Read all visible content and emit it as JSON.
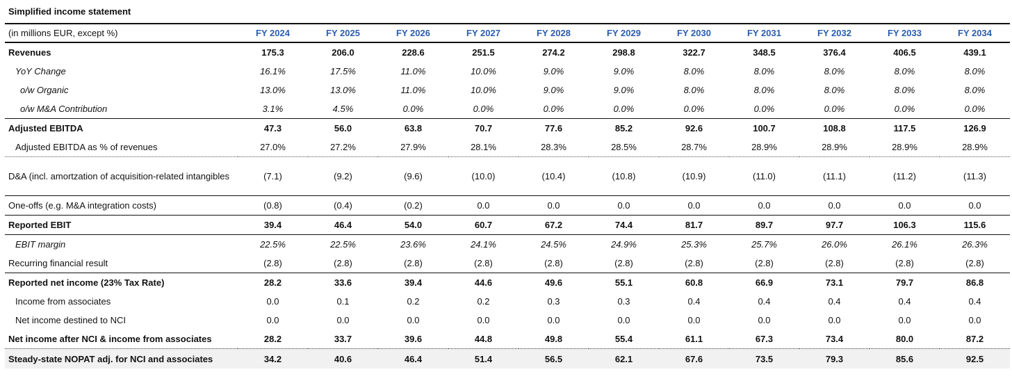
{
  "title": "Simplified income statement",
  "header": {
    "label": "(in millions EUR, except %)",
    "years": [
      "FY 2024",
      "FY 2025",
      "FY 2026",
      "FY 2027",
      "FY 2028",
      "FY 2029",
      "FY 2030",
      "FY 2031",
      "FY 2032",
      "FY 2033",
      "FY 2034"
    ]
  },
  "accent_color": "#2a5db0",
  "rows": [
    {
      "label": "Revenues",
      "style": "bold",
      "values": [
        "175.3",
        "206.0",
        "228.6",
        "251.5",
        "274.2",
        "298.8",
        "322.7",
        "348.5",
        "376.4",
        "406.5",
        "439.1"
      ]
    },
    {
      "label": "YoY Change",
      "style": "italic",
      "values": [
        "16.1%",
        "17.5%",
        "11.0%",
        "10.0%",
        "9.0%",
        "9.0%",
        "8.0%",
        "8.0%",
        "8.0%",
        "8.0%",
        "8.0%"
      ]
    },
    {
      "label": "o/w Organic",
      "style": "italic",
      "values": [
        "13.0%",
        "13.0%",
        "11.0%",
        "10.0%",
        "9.0%",
        "9.0%",
        "8.0%",
        "8.0%",
        "8.0%",
        "8.0%",
        "8.0%"
      ]
    },
    {
      "label": "o/w M&A Contribution",
      "style": "italic",
      "values": [
        "3.1%",
        "4.5%",
        "0.0%",
        "0.0%",
        "0.0%",
        "0.0%",
        "0.0%",
        "0.0%",
        "0.0%",
        "0.0%",
        "0.0%"
      ]
    },
    {
      "label": "Adjusted EBITDA",
      "style": "bold",
      "values": [
        "47.3",
        "56.0",
        "63.8",
        "70.7",
        "77.6",
        "85.2",
        "92.6",
        "100.7",
        "108.8",
        "117.5",
        "126.9"
      ]
    },
    {
      "label": "Adjusted EBITDA as % of revenues",
      "style": "normal",
      "values": [
        "27.0%",
        "27.2%",
        "27.9%",
        "28.1%",
        "28.3%",
        "28.5%",
        "28.7%",
        "28.9%",
        "28.9%",
        "28.9%",
        "28.9%"
      ]
    },
    {
      "label": "D&A (incl. amortzation of acquisition-related intangibles",
      "style": "normal",
      "values": [
        "(7.1)",
        "(9.2)",
        "(9.6)",
        "(10.0)",
        "(10.4)",
        "(10.8)",
        "(10.9)",
        "(11.0)",
        "(11.1)",
        "(11.2)",
        "(11.3)"
      ]
    },
    {
      "label": "One-offs (e.g. M&A integration costs)",
      "style": "normal",
      "values": [
        "(0.8)",
        "(0.4)",
        "(0.2)",
        "0.0",
        "0.0",
        "0.0",
        "0.0",
        "0.0",
        "0.0",
        "0.0",
        "0.0"
      ]
    },
    {
      "label": "Reported EBIT",
      "style": "bold",
      "values": [
        "39.4",
        "46.4",
        "54.0",
        "60.7",
        "67.2",
        "74.4",
        "81.7",
        "89.7",
        "97.7",
        "106.3",
        "115.6"
      ]
    },
    {
      "label": "EBIT margin",
      "style": "italic",
      "values": [
        "22.5%",
        "22.5%",
        "23.6%",
        "24.1%",
        "24.5%",
        "24.9%",
        "25.3%",
        "25.7%",
        "26.0%",
        "26.1%",
        "26.3%"
      ]
    },
    {
      "label": "Recurring financial result",
      "style": "normal",
      "values": [
        "(2.8)",
        "(2.8)",
        "(2.8)",
        "(2.8)",
        "(2.8)",
        "(2.8)",
        "(2.8)",
        "(2.8)",
        "(2.8)",
        "(2.8)",
        "(2.8)"
      ]
    },
    {
      "label": "Reported net income (23% Tax Rate)",
      "style": "bold",
      "values": [
        "28.2",
        "33.6",
        "39.4",
        "44.6",
        "49.6",
        "55.1",
        "60.8",
        "66.9",
        "73.1",
        "79.7",
        "86.8"
      ]
    },
    {
      "label": "Income from associates",
      "style": "normal",
      "values": [
        "0.0",
        "0.1",
        "0.2",
        "0.2",
        "0.3",
        "0.3",
        "0.4",
        "0.4",
        "0.4",
        "0.4",
        "0.4"
      ]
    },
    {
      "label": "Net income destined to NCI",
      "style": "normal",
      "values": [
        "0.0",
        "0.0",
        "0.0",
        "0.0",
        "0.0",
        "0.0",
        "0.0",
        "0.0",
        "0.0",
        "0.0",
        "0.0"
      ]
    },
    {
      "label": "Net income after NCI & income from associates",
      "style": "bold",
      "values": [
        "28.2",
        "33.7",
        "39.6",
        "44.8",
        "49.8",
        "55.4",
        "61.1",
        "67.3",
        "73.4",
        "80.0",
        "87.2"
      ]
    },
    {
      "label": "Steady-state NOPAT adj. for NCI and associates",
      "style": "bold",
      "values": [
        "34.2",
        "40.6",
        "46.4",
        "51.4",
        "56.5",
        "62.1",
        "67.6",
        "73.5",
        "79.3",
        "85.6",
        "92.5"
      ]
    }
  ]
}
